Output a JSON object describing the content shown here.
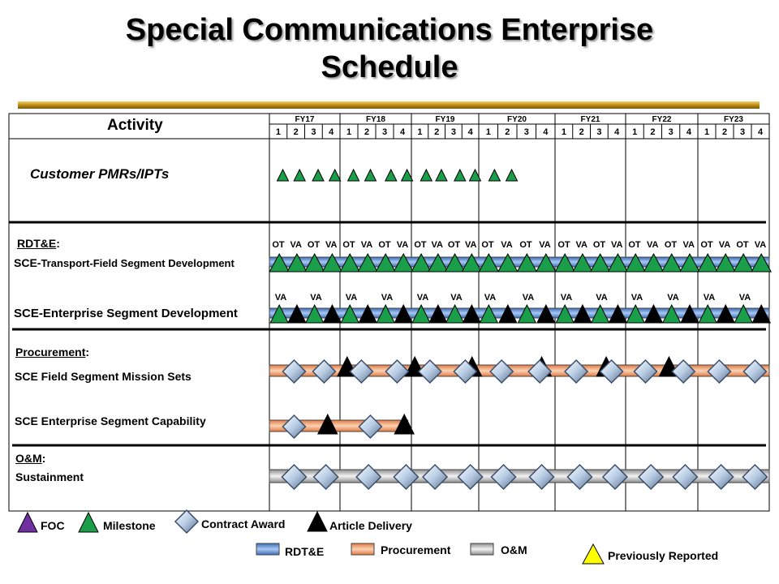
{
  "title_line1": "Special Communications Enterprise",
  "title_line2": "Schedule",
  "activity_header": "Activity",
  "fiscal_years": [
    "FY17",
    "FY18",
    "FY19",
    "FY20",
    "FY21",
    "FY22",
    "FY23"
  ],
  "quarters": [
    "1",
    "2",
    "3",
    "4"
  ],
  "rows": {
    "pmr": "Customer PMRs/IPTs",
    "rdte_heading": "RDT&E",
    "rdte_colon": ":",
    "transport_prefix": "SCE-",
    "transport_rest": "Transport-Field Segment Development",
    "enterprise_dev": "SCE-Enterprise Segment Development",
    "procurement_heading": "Procurement",
    "procurement_colon": ":",
    "field_mission": "SCE Field Segment Mission Sets",
    "enterprise_cap": "SCE Enterprise Segment Capability",
    "om_heading": "O&M",
    "om_colon": ":",
    "sustainment": "Sustainment"
  },
  "legend": {
    "foc": "FOC",
    "milestone": "Milestone",
    "contract_award": "Contract Award",
    "article_delivery": "Article Delivery",
    "rdte": "RDT&E",
    "procurement": "Procurement",
    "om": "O&M",
    "previously_reported": "Previously Reported"
  },
  "colors": {
    "milestone": "#1a9e4a",
    "delivery": "#000000",
    "foc": "#7030a0",
    "previously_reported": "#ffff00",
    "diamond": "#b8cce4",
    "rdte_bar": "#5b8fd6",
    "procurement_bar": "#f4a87a",
    "om_bar": "#cfcfcf",
    "title_bar": "#c8961e"
  },
  "chart_data": {
    "type": "gantt",
    "time_axis": {
      "fiscal_years": [
        "FY17",
        "FY18",
        "FY19",
        "FY20",
        "FY21",
        "FY22",
        "FY23"
      ],
      "quarters_per_year": 4
    },
    "pmr_milestones": [
      1.3,
      2.25,
      3.3,
      4.25,
      5.3,
      6.25,
      7.4,
      8.3,
      9.4,
      10.3,
      11.4,
      12.3,
      13.4,
      14.3
    ],
    "transport": {
      "bar": [
        1,
        29
      ],
      "labels": [
        "OT",
        "VA",
        "OT",
        "VA",
        "OT",
        "VA",
        "OT",
        "VA",
        "OT",
        "VA",
        "OT",
        "VA",
        "OT",
        "VA",
        "OT",
        "VA",
        "OT",
        "VA",
        "OT",
        "VA",
        "OT",
        "VA",
        "OT",
        "VA",
        "OT",
        "VA",
        "OT",
        "VA"
      ],
      "milestones": [
        1.1,
        2.1,
        3.1,
        4.1,
        5.1,
        6.1,
        7.1,
        8.1,
        9.1,
        10.1,
        11.1,
        12.1,
        13.1,
        14.1,
        15.1,
        16.1,
        17.1,
        18.1,
        19.1,
        20.1,
        21.1,
        22.1,
        23.1,
        24.1,
        25.1,
        26.1,
        27.1,
        28.1
      ]
    },
    "enterprise_dev": {
      "bar": [
        1,
        29
      ],
      "labels": [
        "VA",
        "VA",
        "VA",
        "VA",
        "VA",
        "VA",
        "VA",
        "VA",
        "VA",
        "VA",
        "VA",
        "VA",
        "VA",
        "VA"
      ],
      "milestones": [
        1.1,
        3.1,
        5.1,
        7.1,
        9.1,
        11.1,
        13.1,
        15.1,
        17.1,
        19.1,
        21.1,
        23.1,
        25.1,
        27.1
      ],
      "deliveries": [
        2.1,
        4.1,
        6.1,
        8.1,
        10.1,
        12.1,
        14.1,
        16.1,
        18.1,
        20.1,
        22.1,
        24.1,
        26.1,
        28.1
      ]
    },
    "field_mission": {
      "bar": [
        1,
        29
      ],
      "awards": [
        2.4,
        4.1,
        6.2,
        8.2,
        10.1,
        12.2,
        14.2,
        16.2,
        18.2,
        20.2,
        22.1,
        24.2,
        26.2,
        28.2
      ],
      "deliveries": [
        5.4,
        9.2,
        12.6,
        16.3,
        19.9,
        23.4
      ]
    },
    "enterprise_cap": {
      "bar": [
        1,
        8.8
      ],
      "awards": [
        2.4,
        6.7
      ],
      "deliveries": [
        4.3,
        8.6
      ]
    },
    "sustainment": {
      "bar": [
        1,
        29
      ],
      "awards": [
        2.4,
        4.2,
        6.6,
        8.7,
        10.4,
        12.5,
        14.3,
        16.3,
        18.4,
        20.4,
        22.4,
        24.3,
        26.3,
        28.2
      ]
    }
  }
}
